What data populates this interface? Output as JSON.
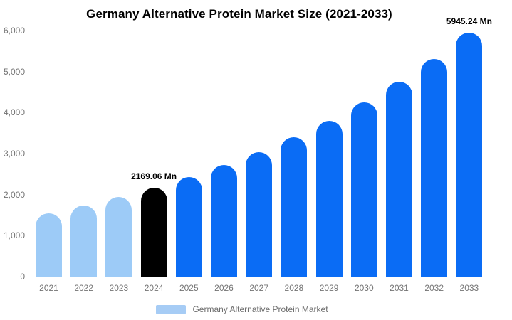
{
  "chart_data": {
    "type": "bar",
    "title": "Germany Alternative Protein Market Size (2021-2033)",
    "xlabel": "",
    "ylabel": "",
    "unit": "Mn",
    "categories": [
      "2021",
      "2022",
      "2023",
      "2024",
      "2025",
      "2026",
      "2027",
      "2028",
      "2029",
      "2030",
      "2031",
      "2032",
      "2033"
    ],
    "values": [
      1550,
      1734,
      1940,
      2169.06,
      2426,
      2714,
      3035,
      3395,
      3798,
      4248,
      4752,
      5315,
      5945.24
    ],
    "point_colors": [
      "#9dcbf7",
      "#9dcbf7",
      "#9dcbf7",
      "#000000",
      "#0a6cf5",
      "#0a6cf5",
      "#0a6cf5",
      "#0a6cf5",
      "#0a6cf5",
      "#0a6cf5",
      "#0a6cf5",
      "#0a6cf5",
      "#0a6cf5"
    ],
    "data_labels": [
      {
        "category": "2024",
        "text": "2169.06 Mn"
      },
      {
        "category": "2033",
        "text": "5945.24 Mn"
      }
    ],
    "y_ticks": [
      "0",
      "1,000",
      "2,000",
      "3,000",
      "4,000",
      "5,000",
      "6,000"
    ],
    "y_tick_values": [
      0,
      1000,
      2000,
      3000,
      4000,
      5000,
      6000
    ],
    "ylim": [
      0,
      6000
    ],
    "grid": false,
    "legend": {
      "label": "Germany Alternative Protein Market",
      "swatch_color": "#a6ccf5",
      "position": "bottom"
    },
    "colors": {
      "historical_bar": "#9dcbf7",
      "highlight_bar": "#000000",
      "forecast_bar": "#0a6cf5",
      "axis_line": "#d6d6d6",
      "tick_text": "#737373",
      "title_text": "#000000",
      "legend_text": "#6e6e6e"
    }
  }
}
